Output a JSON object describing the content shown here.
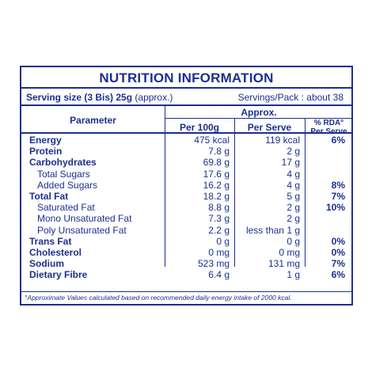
{
  "title": "NUTRITION INFORMATION",
  "serving": {
    "size_bold": "Serving size (3 Bis) 25g",
    "size_note": " (approx.)",
    "servings_per_pack": "Servings/Pack : about 38"
  },
  "header": {
    "approx": "Approx.",
    "parameter": "Parameter",
    "per_100g": "Per 100g",
    "per_serve": "Per Serve",
    "rda_line1": "% RDA°",
    "rda_line2": "Per Serve"
  },
  "rows": [
    {
      "label": "Energy",
      "per100": "475 kcal",
      "perserve": "119 kcal",
      "rda": "6%",
      "main": true
    },
    {
      "label": "Protein",
      "per100": "7.8 g",
      "perserve": "2 g",
      "rda": "",
      "main": true
    },
    {
      "label": "Carbohydrates",
      "per100": "69.8 g",
      "perserve": "17 g",
      "rda": "",
      "main": true
    },
    {
      "label": "Total Sugars",
      "per100": "17.6 g",
      "perserve": "4 g",
      "rda": "",
      "main": false
    },
    {
      "label": "Added Sugars",
      "per100": "16.2 g",
      "perserve": "4 g",
      "rda": "8%",
      "main": false
    },
    {
      "label": "Total Fat",
      "per100": "18.2 g",
      "perserve": "5 g",
      "rda": "7%",
      "main": true
    },
    {
      "label": "Saturated Fat",
      "per100": "8.8 g",
      "perserve": "2 g",
      "rda": "10%",
      "main": false
    },
    {
      "label": "Mono Unsaturated Fat",
      "per100": "7.3 g",
      "perserve": "2 g",
      "rda": "",
      "main": false
    },
    {
      "label": "Poly Unsaturated Fat",
      "per100": "2.2 g",
      "perserve": "less than 1 g",
      "rda": "",
      "main": false
    },
    {
      "label": "Trans Fat",
      "per100": "0 g",
      "perserve": "0 g",
      "rda": "0%",
      "main": true
    },
    {
      "label": "Cholesterol",
      "per100": "0 mg",
      "perserve": "0 mg",
      "rda": "0%",
      "main": true
    },
    {
      "label": "Sodium",
      "per100": "523 mg",
      "perserve": "131 mg",
      "rda": "7%",
      "main": true
    },
    {
      "label": "Dietary Fibre",
      "per100": "6.4 g",
      "perserve": "1 g",
      "rda": "6%",
      "main": true
    }
  ],
  "footnote": "°Approximate Values calculated based on recommended daily energy intake of 2000 kcal.",
  "colors": {
    "ink": "#1b2f8f",
    "background": "#ffffff"
  }
}
